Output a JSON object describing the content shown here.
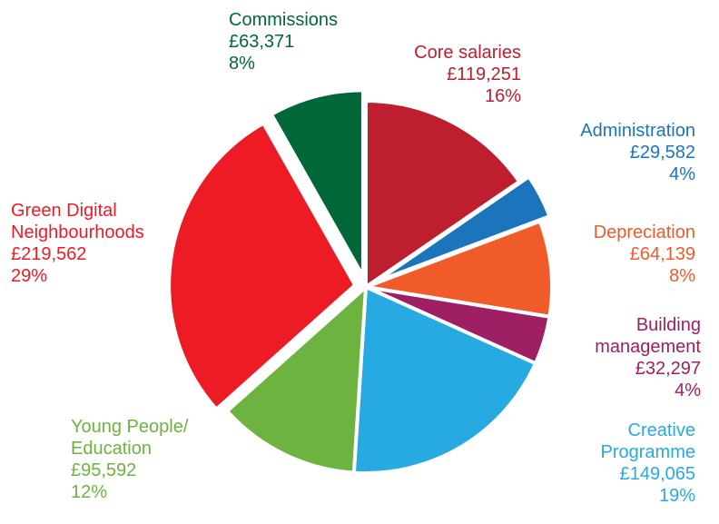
{
  "chart_data": {
    "type": "pie",
    "slices": [
      {
        "name_lines": [
          "Core salaries"
        ],
        "value": "£119,251",
        "amount": 119251,
        "percent": "16%",
        "color": "#be1e2d",
        "exploded": false
      },
      {
        "name_lines": [
          "Administration"
        ],
        "value": "£29,582",
        "amount": 29582,
        "percent": "4%",
        "color": "#1c75bc",
        "exploded": true
      },
      {
        "name_lines": [
          "Depreciation"
        ],
        "value": "£64,139",
        "amount": 64139,
        "percent": "8%",
        "color": "#f15a29",
        "exploded": false
      },
      {
        "name_lines": [
          "Building",
          "management"
        ],
        "value": "£32,297",
        "amount": 32297,
        "percent": "4%",
        "color": "#9e1f63",
        "exploded": false
      },
      {
        "name_lines": [
          "Creative",
          "Programme"
        ],
        "value": "£149,065",
        "amount": 149065,
        "percent": "19%",
        "color": "#27aae1",
        "exploded": false
      },
      {
        "name_lines": [
          "Young People/",
          "Education"
        ],
        "value": "£95,592",
        "amount": 95592,
        "percent": "12%",
        "color": "#6db33f",
        "exploded": false
      },
      {
        "name_lines": [
          "Green Digital",
          "Neighbourhoods"
        ],
        "value": "£219,562",
        "amount": 219562,
        "percent": "29%",
        "color": "#ed1c24",
        "exploded": true
      },
      {
        "name_lines": [
          "Commissions"
        ],
        "value": "£63,371",
        "amount": 63371,
        "percent": "8%",
        "color": "#006838",
        "exploded": true
      }
    ]
  }
}
